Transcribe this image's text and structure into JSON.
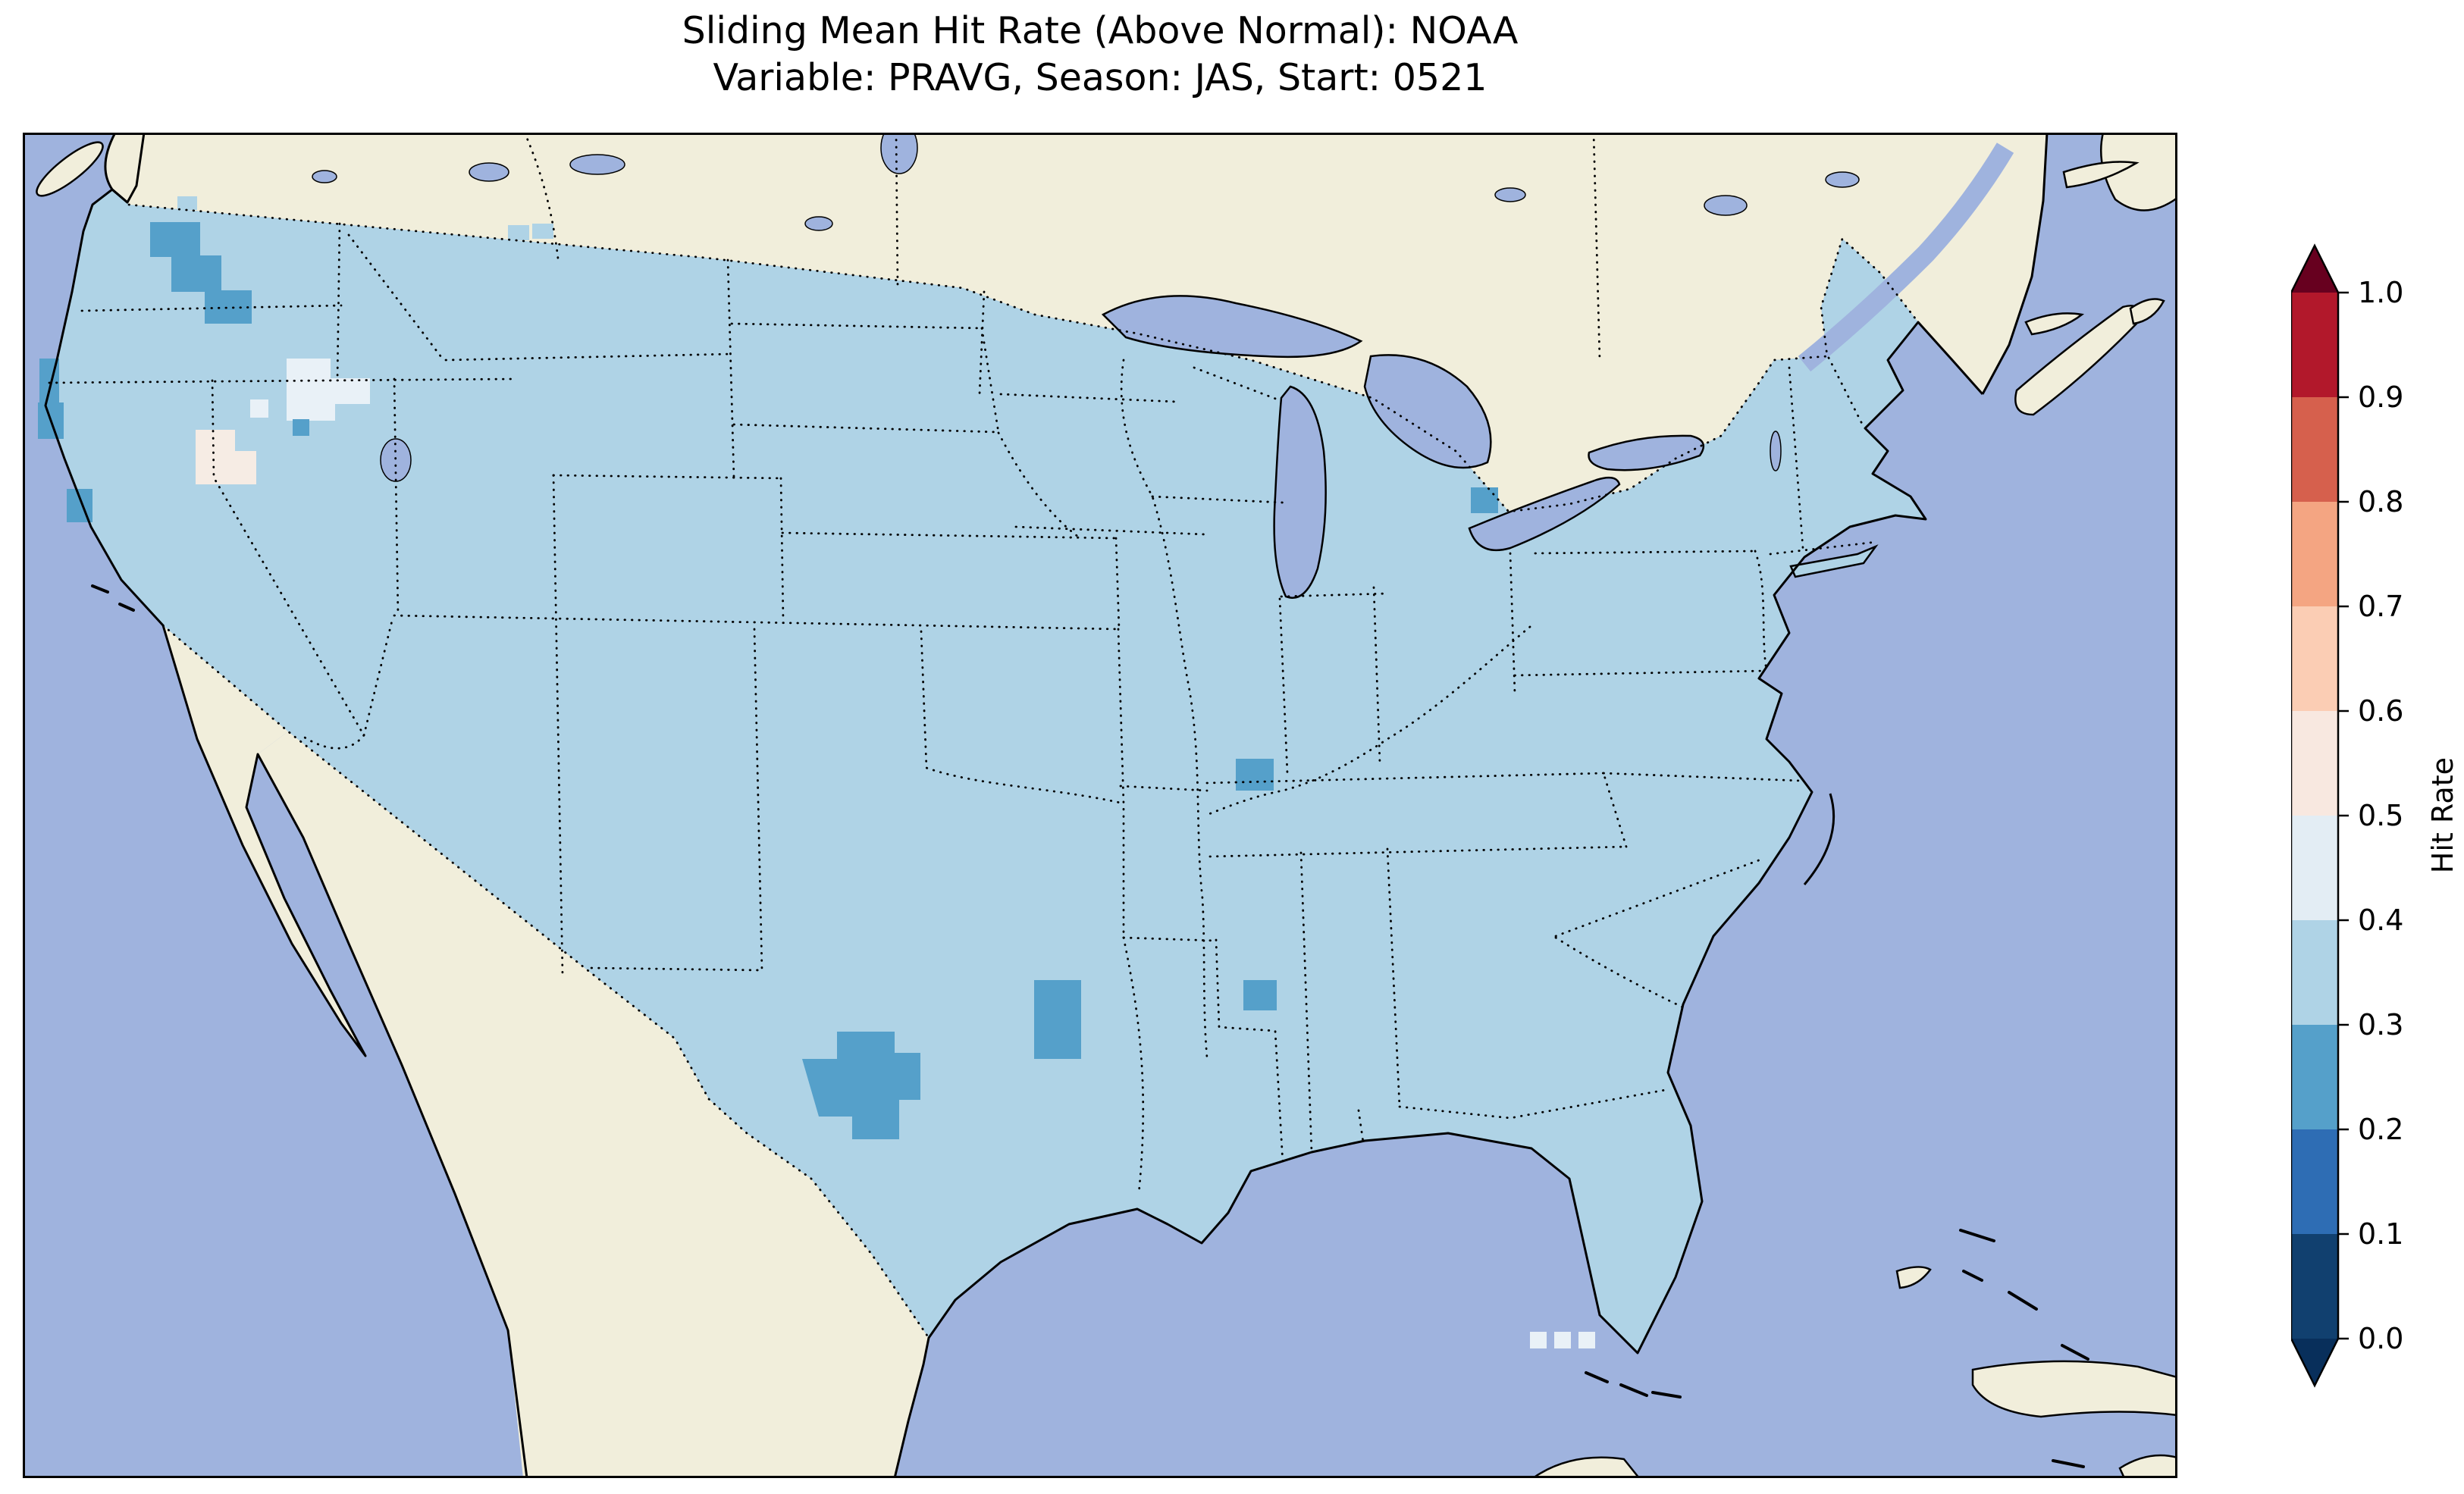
{
  "figure": {
    "title_line1": "Sliding Mean Hit Rate (Above Normal): NOAA",
    "title_line2": "Variable: PRAVG, Season: JAS, Start: 0521"
  },
  "colorbar": {
    "label": "Hit Rate",
    "ticks": [
      "1.0",
      "0.9",
      "0.8",
      "0.7",
      "0.6",
      "0.5",
      "0.4",
      "0.3",
      "0.2",
      "0.1",
      "0.0"
    ],
    "segments": [
      "#67001f",
      "#b2182b",
      "#d6604d",
      "#f4a582",
      "#fbcdb4",
      "#f8e8e0",
      "#e3edf4",
      "#afd3e6",
      "#55a0ca",
      "#2e6db4",
      "#11406f",
      "#082f5b"
    ]
  },
  "map": {
    "ocean_color": "#9fb3de",
    "land_color": "#f1eedb",
    "conus_fill_color": "#afd3e6",
    "low_cell_color": "#55a0ca",
    "high_cell_color": "#e9f1f7",
    "warm_white_cell_color": "#f6ece4"
  },
  "chart_data": {
    "type": "heatmap",
    "title": "Sliding Mean Hit Rate (Above Normal): NOAA",
    "subtitle": "Variable: PRAVG, Season: JAS, Start: 0521",
    "colorbar_label": "Hit Rate",
    "scale_range": [
      0.0,
      1.0
    ],
    "scale_step": 0.1,
    "colorbar_extend": "both",
    "regions": [
      {
        "region": "most of CONUS",
        "hit_rate_bin": "0.3-0.4"
      },
      {
        "region": "Washington Cascades",
        "hit_rate_bin": "0.2-0.3"
      },
      {
        "region": "northern California coast",
        "hit_rate_bin": "0.2-0.3"
      },
      {
        "region": "central California coast",
        "hit_rate_bin": "0.2-0.3"
      },
      {
        "region": "Nevada / western Utah patches",
        "hit_rate_bin": "0.4-0.6"
      },
      {
        "region": "southwest Texas",
        "hit_rate_bin": "0.2-0.3"
      },
      {
        "region": "east-central Texas",
        "hit_rate_bin": "0.2-0.3"
      },
      {
        "region": "Kentucky-Tennessee border spot",
        "hit_rate_bin": "0.2-0.3"
      },
      {
        "region": "central Mississippi spot",
        "hit_rate_bin": "0.2-0.3"
      },
      {
        "region": "southeast Michigan shore spot",
        "hit_rate_bin": "0.2-0.3"
      },
      {
        "region": "south Florida cells",
        "hit_rate_bin": "0.4-0.5"
      }
    ]
  }
}
